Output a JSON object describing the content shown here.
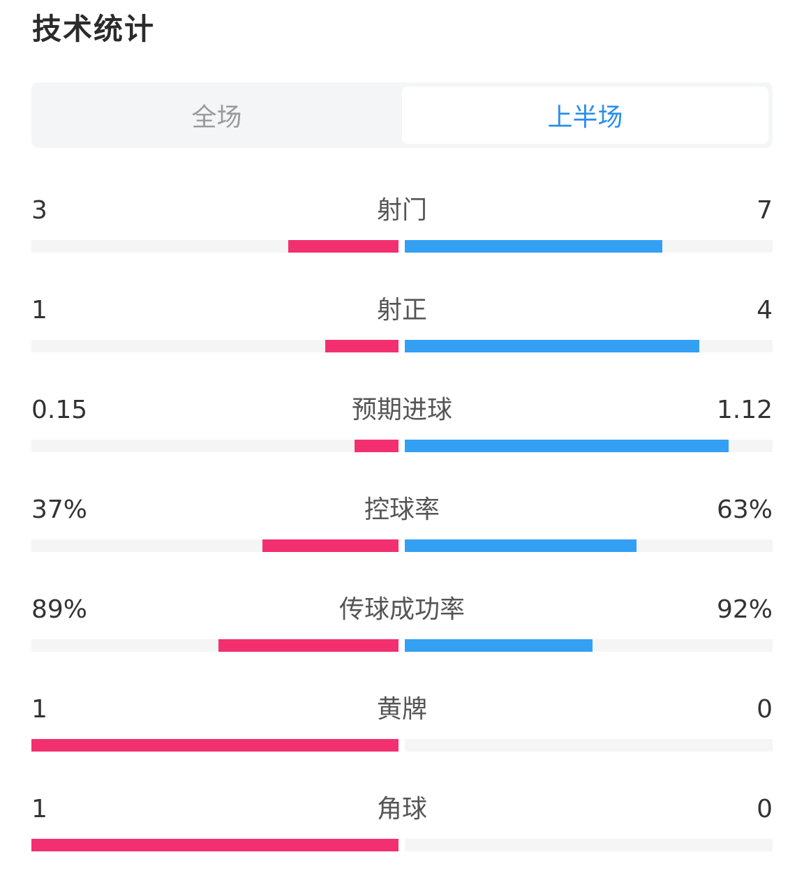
{
  "header": {
    "title": "技术统计"
  },
  "tabs": [
    {
      "label": "全场",
      "active": false
    },
    {
      "label": "上半场",
      "active": true
    }
  ],
  "colors": {
    "home": "#f2306f",
    "away": "#34a0f4",
    "active_tab": "#2a8ee8",
    "track": "#f5f5f6"
  },
  "stats": [
    {
      "label": "射门",
      "left": "3",
      "right": "7",
      "left_fill": 0.3,
      "right_fill": 0.7
    },
    {
      "label": "射正",
      "left": "1",
      "right": "4",
      "left_fill": 0.2,
      "right_fill": 0.8
    },
    {
      "label": "预期进球",
      "left": "0.15",
      "right": "1.12",
      "left_fill": 0.12,
      "right_fill": 0.88
    },
    {
      "label": "控球率",
      "left": "37%",
      "right": "63%",
      "left_fill": 0.37,
      "right_fill": 0.63
    },
    {
      "label": "传球成功率",
      "left": "89%",
      "right": "92%",
      "left_fill": 0.49,
      "right_fill": 0.51
    },
    {
      "label": "黄牌",
      "left": "1",
      "right": "0",
      "left_fill": 1.0,
      "right_fill": 0.0
    },
    {
      "label": "角球",
      "left": "1",
      "right": "0",
      "left_fill": 1.0,
      "right_fill": 0.0
    }
  ]
}
